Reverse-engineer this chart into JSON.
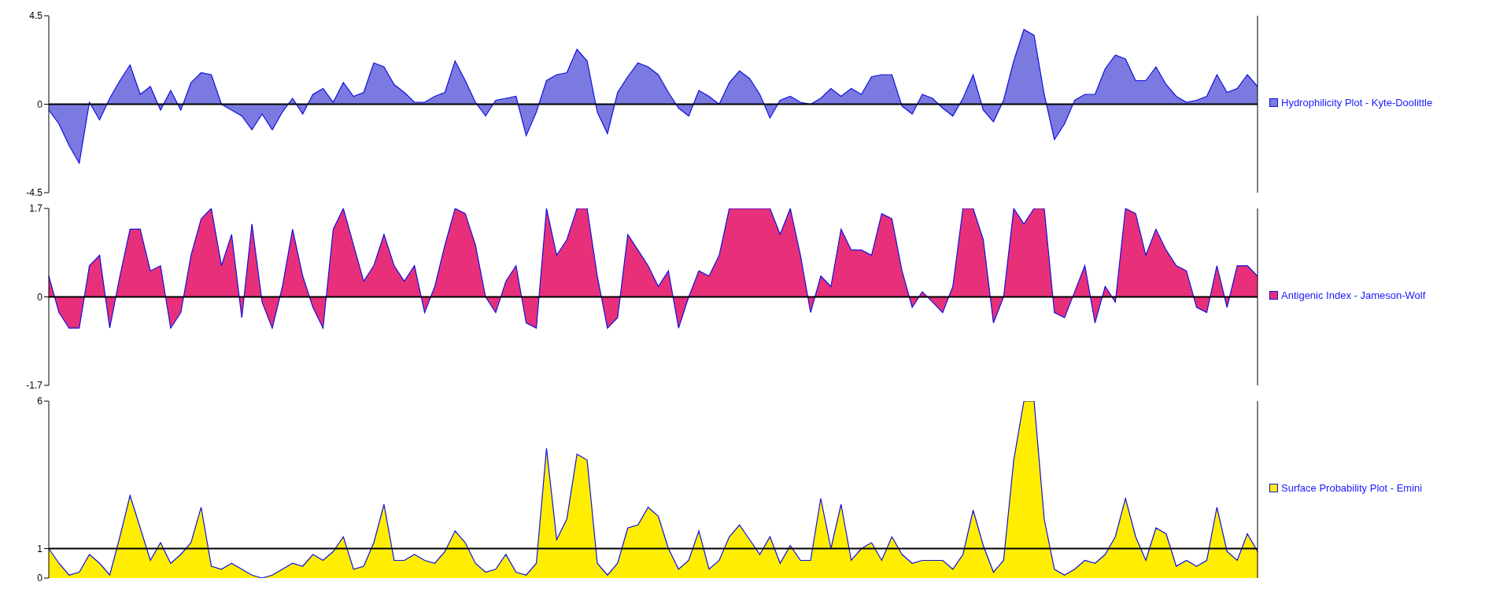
{
  "chart_data": [
    {
      "type": "area",
      "categories": [
        null,
        null,
        null,
        null,
        null,
        null,
        null,
        null,
        null,
        null,
        null,
        null,
        null,
        null,
        null,
        null,
        null,
        null,
        null,
        null,
        null,
        null,
        null,
        null,
        null,
        null,
        null,
        null,
        null,
        null,
        null,
        null,
        null,
        null,
        null,
        null,
        null,
        null,
        null,
        null,
        null,
        null,
        null,
        null,
        null,
        null,
        null,
        null,
        null,
        null,
        null,
        null,
        null,
        null,
        null,
        null,
        null,
        null,
        null,
        null,
        null,
        null,
        null,
        null,
        null,
        null,
        null,
        null,
        null,
        null,
        null,
        null,
        null,
        null,
        null,
        null,
        null,
        null,
        null,
        null,
        null,
        null,
        null,
        null,
        null,
        null,
        null,
        null,
        null,
        null,
        null,
        null,
        null,
        null,
        null,
        null,
        null,
        null,
        null,
        null,
        null,
        null,
        null,
        null,
        null,
        null,
        null,
        null,
        null,
        null,
        null,
        null,
        null,
        null,
        null,
        null,
        null,
        null,
        null,
        null
      ],
      "series": [
        {
          "name": "Hydrophilicity Plot - Kyte-Doolittle",
          "color": "#7a7ae0",
          "values": [
            -0.3,
            -1.0,
            -2.1,
            -3.0,
            0.1,
            -0.8,
            0.3,
            1.2,
            2.0,
            0.5,
            0.9,
            -0.3,
            0.7,
            -0.3,
            1.1,
            1.6,
            1.5,
            0.0,
            -0.3,
            -0.6,
            -1.3,
            -0.5,
            -1.3,
            -0.4,
            0.3,
            -0.5,
            0.5,
            0.8,
            0.1,
            1.1,
            0.4,
            0.6,
            2.1,
            1.9,
            1.0,
            0.6,
            0.1,
            0.1,
            0.4,
            0.6,
            2.2,
            1.2,
            0.1,
            -0.6,
            0.2,
            0.3,
            0.4,
            -1.6,
            -0.4,
            1.2,
            1.5,
            1.6,
            2.8,
            2.2,
            -0.4,
            -1.5,
            0.6,
            1.4,
            2.1,
            1.9,
            1.5,
            0.6,
            -0.2,
            -0.6,
            0.7,
            0.4,
            0.0,
            1.1,
            1.7,
            1.3,
            0.5,
            -0.7,
            0.2,
            0.4,
            0.1,
            0.0,
            0.3,
            0.8,
            0.4,
            0.8,
            0.5,
            1.4,
            1.5,
            1.5,
            -0.1,
            -0.5,
            0.5,
            0.3,
            -0.2,
            -0.6,
            0.3,
            1.5,
            -0.3,
            -0.9,
            0.2,
            2.2,
            3.8,
            3.5,
            0.5,
            -1.8,
            -1.0,
            0.2,
            0.5,
            0.5,
            1.8,
            2.5,
            2.3,
            1.2,
            1.2,
            1.9,
            1.0,
            0.4,
            0.1,
            0.2,
            0.4,
            1.5,
            0.6,
            0.8,
            1.5,
            0.9
          ]
        }
      ],
      "ylim": [
        -4.5,
        4.5
      ],
      "yticks": [
        -4.5,
        0,
        4.5
      ],
      "ref_lines": [
        {
          "axis": "y",
          "value": 0
        }
      ],
      "grid": false,
      "legend": "right"
    },
    {
      "type": "area",
      "categories": [
        null,
        null,
        null,
        null,
        null,
        null,
        null,
        null,
        null,
        null,
        null,
        null,
        null,
        null,
        null,
        null,
        null,
        null,
        null,
        null,
        null,
        null,
        null,
        null,
        null,
        null,
        null,
        null,
        null,
        null,
        null,
        null,
        null,
        null,
        null,
        null,
        null,
        null,
        null,
        null,
        null,
        null,
        null,
        null,
        null,
        null,
        null,
        null,
        null,
        null,
        null,
        null,
        null,
        null,
        null,
        null,
        null,
        null,
        null,
        null,
        null,
        null,
        null,
        null,
        null,
        null,
        null,
        null,
        null,
        null,
        null,
        null,
        null,
        null,
        null,
        null,
        null,
        null,
        null,
        null,
        null,
        null,
        null,
        null,
        null,
        null,
        null,
        null,
        null,
        null,
        null,
        null,
        null,
        null,
        null,
        null,
        null,
        null,
        null,
        null,
        null,
        null,
        null,
        null,
        null,
        null,
        null,
        null,
        null,
        null,
        null,
        null,
        null,
        null,
        null,
        null,
        null,
        null,
        null,
        null
      ],
      "series": [
        {
          "name": "Antigenic Index - Jameson-Wolf",
          "color": "#e8307a",
          "values": [
            0.4,
            -0.3,
            -0.6,
            -0.6,
            0.6,
            0.8,
            -0.6,
            0.4,
            1.3,
            1.3,
            0.5,
            0.6,
            -0.6,
            -0.3,
            0.8,
            1.5,
            1.7,
            0.6,
            1.2,
            -0.4,
            1.4,
            -0.1,
            -0.6,
            0.2,
            1.3,
            0.4,
            -0.2,
            -0.6,
            1.3,
            1.7,
            1.0,
            0.3,
            0.6,
            1.2,
            0.6,
            0.3,
            0.6,
            -0.3,
            0.2,
            1.0,
            1.7,
            1.6,
            1.0,
            0.0,
            -0.3,
            0.3,
            0.6,
            -0.5,
            -0.6,
            1.7,
            0.8,
            1.1,
            1.7,
            1.7,
            0.4,
            -0.6,
            -0.4,
            1.2,
            0.9,
            0.6,
            0.2,
            0.5,
            -0.6,
            0.0,
            0.5,
            0.4,
            0.8,
            1.7,
            1.7,
            1.7,
            1.7,
            1.7,
            1.2,
            1.7,
            0.8,
            -0.3,
            0.4,
            0.2,
            1.3,
            0.9,
            0.9,
            0.8,
            1.6,
            1.5,
            0.5,
            -0.2,
            0.1,
            -0.1,
            -0.3,
            0.2,
            1.7,
            1.7,
            1.1,
            -0.5,
            0.0,
            1.7,
            1.4,
            1.7,
            1.7,
            -0.3,
            -0.4,
            0.1,
            0.6,
            -0.5,
            0.2,
            -0.1,
            1.7,
            1.6,
            0.8,
            1.3,
            0.9,
            0.6,
            0.5,
            -0.2,
            -0.3,
            0.6,
            -0.2,
            0.6,
            0.6,
            0.4
          ]
        }
      ],
      "ylim": [
        -1.7,
        1.7
      ],
      "yticks": [
        -1.7,
        0,
        1.7
      ],
      "ref_lines": [
        {
          "axis": "y",
          "value": 0
        }
      ],
      "grid": false,
      "legend": "right"
    },
    {
      "type": "area",
      "categories": [
        null,
        null,
        null,
        null,
        null,
        null,
        null,
        null,
        null,
        null,
        null,
        null,
        null,
        null,
        null,
        null,
        null,
        null,
        null,
        null,
        null,
        null,
        null,
        null,
        null,
        null,
        null,
        null,
        null,
        null,
        null,
        null,
        null,
        null,
        null,
        null,
        null,
        null,
        null,
        null,
        null,
        null,
        null,
        null,
        null,
        null,
        null,
        null,
        null,
        null,
        null,
        null,
        null,
        null,
        null,
        null,
        null,
        null,
        null,
        null,
        null,
        null,
        null,
        null,
        null,
        null,
        null,
        null,
        null,
        null,
        null,
        null,
        null,
        null,
        null,
        null,
        null,
        null,
        null,
        null,
        null,
        null,
        null,
        null,
        null,
        null,
        null,
        null,
        null,
        null,
        null,
        null,
        null,
        null,
        null,
        null,
        null,
        null,
        null,
        null,
        null,
        null,
        null,
        null,
        null,
        null,
        null,
        null,
        null,
        null,
        null,
        null,
        null,
        null,
        null,
        null,
        null,
        null,
        null,
        null
      ],
      "series": [
        {
          "name": "Surface Probability Plot - Emini",
          "color": "#ffee00",
          "values": [
            1.0,
            0.5,
            0.1,
            0.2,
            0.8,
            0.5,
            0.1,
            1.4,
            2.8,
            1.7,
            0.6,
            1.2,
            0.5,
            0.8,
            1.2,
            2.4,
            0.4,
            0.3,
            0.5,
            0.3,
            0.1,
            0.0,
            0.1,
            0.3,
            0.5,
            0.4,
            0.8,
            0.6,
            0.9,
            1.4,
            0.3,
            0.4,
            1.2,
            2.5,
            0.6,
            0.6,
            0.8,
            0.6,
            0.5,
            0.9,
            1.6,
            1.2,
            0.5,
            0.2,
            0.3,
            0.8,
            0.2,
            0.1,
            0.5,
            4.4,
            1.3,
            2.0,
            4.2,
            4.0,
            0.5,
            0.1,
            0.5,
            1.7,
            1.8,
            2.4,
            2.1,
            1.0,
            0.3,
            0.6,
            1.6,
            0.3,
            0.6,
            1.4,
            1.8,
            1.3,
            0.8,
            1.4,
            0.5,
            1.1,
            0.6,
            0.6,
            2.7,
            1.0,
            2.5,
            0.6,
            1.0,
            1.2,
            0.6,
            1.4,
            0.8,
            0.5,
            0.6,
            0.6,
            0.6,
            0.3,
            0.8,
            2.3,
            1.1,
            0.2,
            0.6,
            4.0,
            6.0,
            6.0,
            2.0,
            0.3,
            0.1,
            0.3,
            0.6,
            0.5,
            0.8,
            1.4,
            2.7,
            1.4,
            0.6,
            1.7,
            1.5,
            0.4,
            0.6,
            0.4,
            0.6,
            2.4,
            0.9,
            0.6,
            1.5,
            0.9
          ]
        }
      ],
      "ylim": [
        0,
        6
      ],
      "yticks": [
        0,
        1,
        6
      ],
      "ref_lines": [
        {
          "axis": "y",
          "value": 1
        }
      ],
      "grid": false,
      "legend": "right"
    }
  ]
}
